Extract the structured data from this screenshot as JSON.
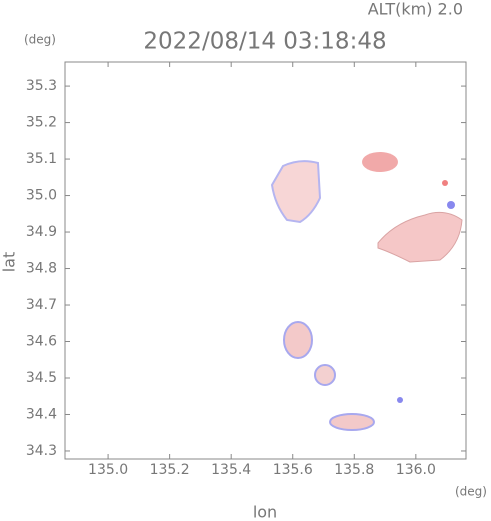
{
  "chart_data": {
    "type": "map",
    "title": "2022/08/14 03:18:48",
    "subtitle": "ALT(km) 2.0",
    "y_unit": "(deg)",
    "x_unit": "(deg)",
    "xlabel": "lon",
    "ylabel": "lat",
    "xlim": [
      134.86,
      136.163
    ],
    "ylim": [
      34.278,
      35.366
    ],
    "xticks": [
      {
        "value": 135,
        "label": "135.0"
      },
      135.2,
      135.4,
      135.6,
      135.8,
      {
        "value": 136,
        "label": "136.0"
      }
    ],
    "yticks": [
      34.3,
      34.4,
      34.5,
      34.6,
      34.7,
      34.8,
      34.9,
      {
        "value": 35,
        "label": "35.0"
      },
      35.1,
      35.2,
      35.3
    ]
  }
}
